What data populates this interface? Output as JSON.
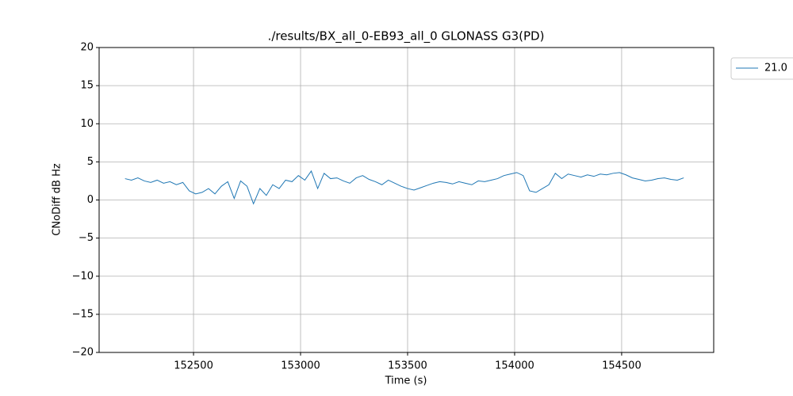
{
  "chart_data": {
    "type": "line",
    "title": "./results/BX_all_0-EB93_all_0 GLONASS G3(PD)",
    "x_label": "Time (s)",
    "y_label": "CNoDiff dB Hz",
    "x": [
      152180,
      152210,
      152240,
      152270,
      152300,
      152330,
      152360,
      152390,
      152420,
      152450,
      152480,
      152510,
      152540,
      152570,
      152600,
      152630,
      152660,
      152690,
      152720,
      152750,
      152780,
      152810,
      152840,
      152870,
      152900,
      152930,
      152960,
      152990,
      153020,
      153050,
      153080,
      153110,
      153140,
      153170,
      153200,
      153230,
      153260,
      153290,
      153320,
      153350,
      153380,
      153410,
      153440,
      153470,
      153500,
      153530,
      153560,
      153590,
      153620,
      153650,
      153680,
      153710,
      153740,
      153770,
      153800,
      153830,
      153860,
      153890,
      153920,
      153950,
      153980,
      154010,
      154040,
      154070,
      154100,
      154130,
      154160,
      154190,
      154220,
      154250,
      154280,
      154310,
      154340,
      154370,
      154400,
      154430,
      154460,
      154490,
      154520,
      154550,
      154580,
      154610,
      154640,
      154670,
      154700,
      154730,
      154760,
      154790
    ],
    "series": [
      {
        "name": "21.0",
        "color": "#1f77b4",
        "values": [
          2.8,
          2.6,
          2.9,
          2.5,
          2.3,
          2.6,
          2.2,
          2.4,
          2.0,
          2.3,
          1.2,
          0.8,
          1.0,
          1.5,
          0.8,
          1.8,
          2.4,
          0.2,
          2.5,
          1.8,
          -0.5,
          1.5,
          0.6,
          2.0,
          1.5,
          2.6,
          2.4,
          3.2,
          2.6,
          3.8,
          1.5,
          3.5,
          2.8,
          2.9,
          2.5,
          2.2,
          2.9,
          3.2,
          2.7,
          2.4,
          2.0,
          2.6,
          2.2,
          1.8,
          1.5,
          1.3,
          1.6,
          1.9,
          2.2,
          2.4,
          2.3,
          2.1,
          2.4,
          2.2,
          2.0,
          2.5,
          2.4,
          2.6,
          2.8,
          3.2,
          3.4,
          3.6,
          3.2,
          1.2,
          1.0,
          1.5,
          2.0,
          3.5,
          2.8,
          3.4,
          3.2,
          3.0,
          3.3,
          3.1,
          3.4,
          3.3,
          3.5,
          3.6,
          3.3,
          2.9,
          2.7,
          2.5,
          2.6,
          2.8,
          2.9,
          2.7,
          2.6,
          2.9
        ]
      }
    ],
    "xlim": [
      152059,
      154930
    ],
    "ylim": [
      -20,
      20
    ],
    "xticks": [
      152500,
      153000,
      153500,
      154000,
      154500
    ],
    "yticks": [
      {
        "value": -20,
        "label": "−20"
      },
      {
        "value": -15,
        "label": "−15"
      },
      {
        "value": -10,
        "label": "−10"
      },
      {
        "value": -5,
        "label": "−5"
      },
      0,
      5,
      10,
      15,
      20
    ],
    "grid": true,
    "legend": "outside-upper-right"
  }
}
